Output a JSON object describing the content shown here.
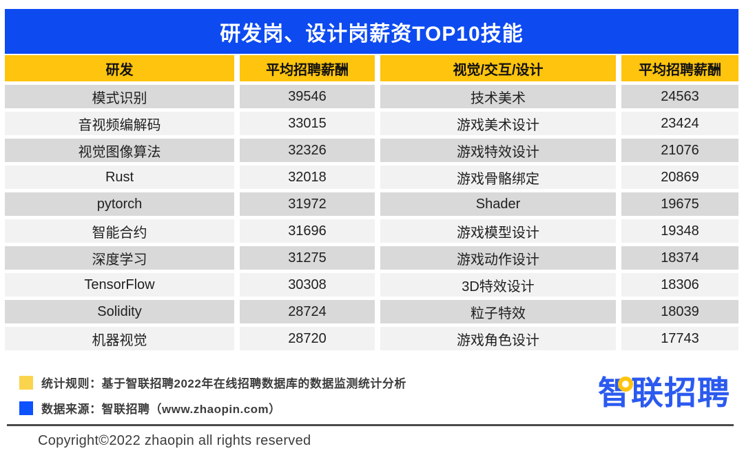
{
  "title": "研发岗、设计岗薪资TOP10技能",
  "colors": {
    "title_bar_blue": "#0d4af0",
    "header_yellow": "#fec40e",
    "row_dark_gray": "#d9d9d9",
    "row_light_gray": "#f2f2f2",
    "legend_yellow": "#fbd44e",
    "legend_blue": "#0c52ff",
    "logo_blue": "#2b5aef"
  },
  "table": {
    "headers": [
      "研发",
      "平均招聘薪酬",
      "视觉/交互/设计",
      "平均招聘薪酬"
    ],
    "rows": [
      [
        "模式识别",
        "39546",
        "技术美术",
        "24563"
      ],
      [
        "音视频编解码",
        "33015",
        "游戏美术设计",
        "23424"
      ],
      [
        "视觉图像算法",
        "32326",
        "游戏特效设计",
        "21076"
      ],
      [
        "Rust",
        "32018",
        "游戏骨骼绑定",
        "20869"
      ],
      [
        "pytorch",
        "31972",
        "Shader",
        "19675"
      ],
      [
        "智能合约",
        "31696",
        "游戏模型设计",
        "19348"
      ],
      [
        "深度学习",
        "31275",
        "游戏动作设计",
        "18374"
      ],
      [
        "TensorFlow",
        "30308",
        "3D特效设计",
        "18306"
      ],
      [
        "Solidity",
        "28724",
        "粒子特效",
        "18039"
      ],
      [
        "机器视觉",
        "28720",
        "游戏角色设计",
        "17743"
      ]
    ]
  },
  "chart_data": {
    "type": "table",
    "title": "研发岗、设计岗薪资TOP10技能",
    "columns": [
      "研发",
      "平均招聘薪酬",
      "视觉/交互/设计",
      "平均招聘薪酬"
    ],
    "series": [
      {
        "name": "研发",
        "value_label": "平均招聘薪酬",
        "categories": [
          "模式识别",
          "音视频编解码",
          "视觉图像算法",
          "Rust",
          "pytorch",
          "智能合约",
          "深度学习",
          "TensorFlow",
          "Solidity",
          "机器视觉"
        ],
        "values": [
          39546,
          33015,
          32326,
          32018,
          31972,
          31696,
          31275,
          30308,
          28724,
          28720
        ]
      },
      {
        "name": "视觉/交互/设计",
        "value_label": "平均招聘薪酬",
        "categories": [
          "技术美术",
          "游戏美术设计",
          "游戏特效设计",
          "游戏骨骼绑定",
          "Shader",
          "游戏模型设计",
          "游戏动作设计",
          "3D特效设计",
          "粒子特效",
          "游戏角色设计"
        ],
        "values": [
          24563,
          23424,
          21076,
          20869,
          19675,
          19348,
          18374,
          18306,
          18039,
          17743
        ]
      }
    ]
  },
  "footer": {
    "legend": [
      {
        "swatch": "yellow-square",
        "text": "统计规则：基于智联招聘2022年在线招聘数据库的数据监测统计分析"
      },
      {
        "swatch": "blue-square",
        "text": "数据来源：智联招聘（www.zhaopin.com）"
      }
    ],
    "logo_text": "智联招聘",
    "copyright": "Copyright©2022 zhaopin all rights reserved"
  }
}
